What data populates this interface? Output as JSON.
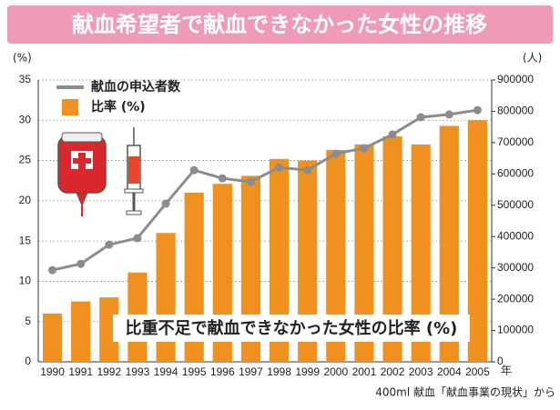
{
  "chart_data": {
    "type": "bar",
    "title": "献血希望者で献血できなかった女性の推移",
    "y_label": "(%)",
    "y2_label": "(人)",
    "x_label": "年",
    "annotation": "比重不足で献血できなかった女性の比率 (%)",
    "source": "400ml 献血「献血事業の現状」から",
    "categories": [
      "1990",
      "1991",
      "1992",
      "1993",
      "1994",
      "1995",
      "1996",
      "1997",
      "1998",
      "1999",
      "2000",
      "2001",
      "2002",
      "2003",
      "2004",
      "2005"
    ],
    "series": [
      {
        "name": "献血の申込者数",
        "type": "line",
        "axis": "y2",
        "color": "#8c8c8c",
        "values": [
          293000,
          313000,
          374000,
          395000,
          505000,
          612000,
          586000,
          575000,
          621000,
          612000,
          665000,
          682000,
          726000,
          781000,
          790000,
          804000
        ]
      },
      {
        "name": "比率 (%)",
        "type": "bar",
        "color": "#f0901e",
        "values": [
          6.0,
          7.5,
          8.0,
          11.1,
          16.0,
          21.0,
          22.1,
          23.1,
          25.2,
          25.0,
          26.3,
          27.0,
          28.0,
          27.0,
          29.3,
          30.0
        ]
      }
    ],
    "ylim": [
      0,
      35
    ],
    "yticks": [
      0,
      5,
      10,
      15,
      20,
      25,
      30,
      35
    ],
    "y2lim": [
      0,
      900000
    ],
    "y2ticks": [
      0,
      100000,
      200000,
      300000,
      400000,
      500000,
      600000,
      700000,
      800000,
      900000
    ],
    "grid": true
  }
}
